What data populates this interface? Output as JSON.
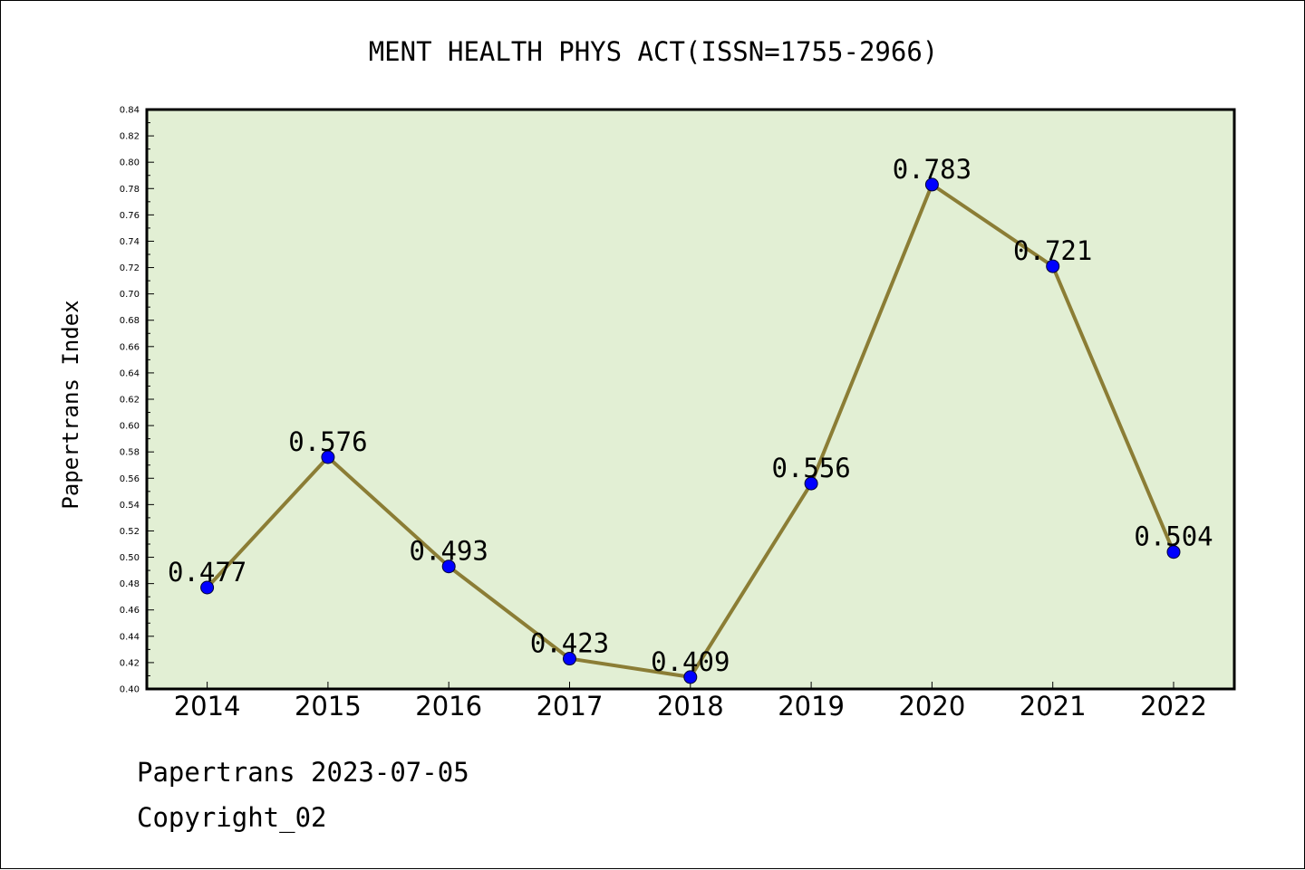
{
  "chart_data": {
    "type": "line",
    "title": "MENT HEALTH PHYS ACT(ISSN=1755-2966)",
    "xlabel": "",
    "ylabel": "Papertrans Index",
    "categories": [
      "2014",
      "2015",
      "2016",
      "2017",
      "2018",
      "2019",
      "2020",
      "2021",
      "2022"
    ],
    "values": [
      0.477,
      0.576,
      0.493,
      0.423,
      0.409,
      0.556,
      0.783,
      0.721,
      0.504
    ],
    "data_labels": [
      "0.477",
      "0.576",
      "0.493",
      "0.423",
      "0.409",
      "0.556",
      "0.783",
      "0.721",
      "0.504"
    ],
    "ylim": [
      0.4,
      0.84
    ],
    "yticks": [
      "0.40",
      "0.42",
      "0.44",
      "0.46",
      "0.48",
      "0.50",
      "0.52",
      "0.54",
      "0.56",
      "0.58",
      "0.60",
      "0.62",
      "0.64",
      "0.66",
      "0.68",
      "0.70",
      "0.72",
      "0.74",
      "0.76",
      "0.78",
      "0.80",
      "0.82",
      "0.84"
    ],
    "grid": false,
    "colors": {
      "plot_background": "#e2efd4",
      "line": "#8b7d35",
      "marker": "#0000ff"
    }
  },
  "footer": {
    "date_line": "Papertrans 2023-07-05",
    "copyright_line": "Copyright_02"
  }
}
